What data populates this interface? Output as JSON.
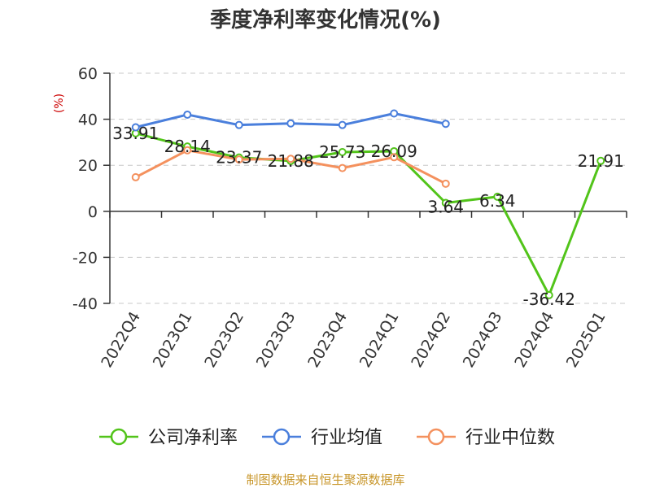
{
  "chart_data": {
    "type": "line",
    "title": "季度净利率变化情况(%)",
    "ylabel": "(%)",
    "xlabel": "",
    "categories": [
      "2022Q4",
      "2023Q1",
      "2023Q2",
      "2023Q3",
      "2023Q4",
      "2024Q1",
      "2024Q2",
      "2024Q3",
      "2024Q4",
      "2025Q1"
    ],
    "y_ticks": [
      "60",
      "40",
      "20",
      "0",
      "-20",
      "-40"
    ],
    "ylim": [
      -40,
      60
    ],
    "grid": true,
    "legend_position": "bottom",
    "series": [
      {
        "name": "公司净利率",
        "color": "#52c41a",
        "values": [
          33.91,
          28.14,
          23.37,
          21.88,
          25.73,
          26.09,
          3.64,
          6.34,
          -36.42,
          21.91
        ],
        "value_labels": [
          "33.91",
          "28.14",
          "23.37",
          "21.88",
          "25.73",
          "26.09",
          "3.64",
          "6.34",
          "-36.42",
          "21.91"
        ]
      },
      {
        "name": "行业均值",
        "color": "#4a7fdc",
        "values": [
          36.5,
          42,
          37.5,
          38.2,
          37.5,
          42.5,
          38,
          null,
          null,
          null
        ]
      },
      {
        "name": "行业中位数",
        "color": "#f4915e",
        "values": [
          14.8,
          26.5,
          22.5,
          22.8,
          18.8,
          23.5,
          12.0,
          null,
          null,
          null
        ]
      }
    ],
    "source": "制图数据来自恒生聚源数据库",
    "source_color": "#c8962a"
  }
}
